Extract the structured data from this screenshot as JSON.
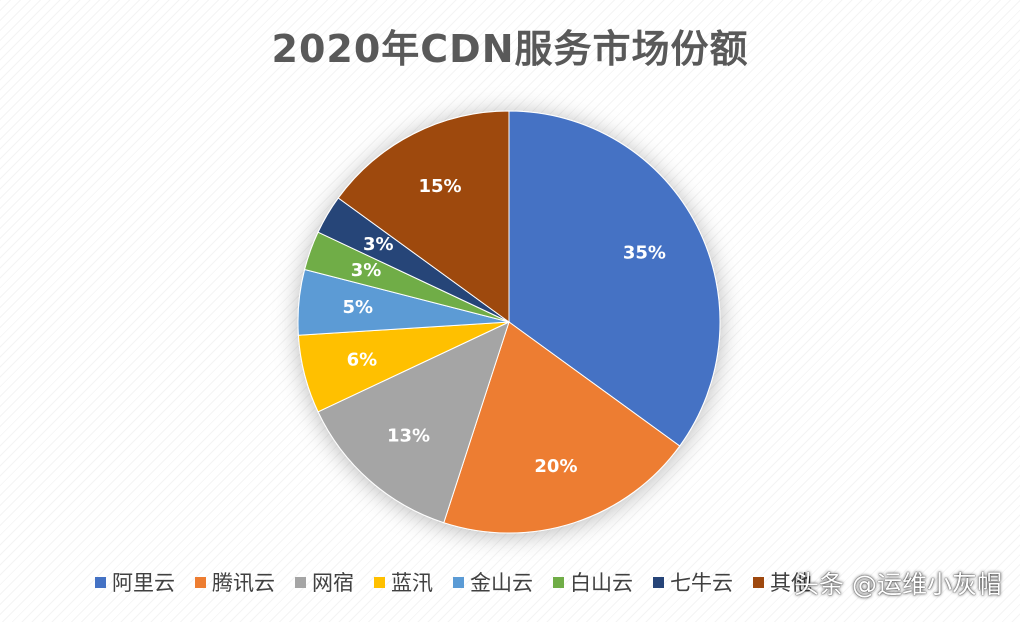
{
  "chart_data": {
    "type": "pie",
    "title": "2020年CDN服务市场份额",
    "categories": [
      "阿里云",
      "腾讯云",
      "网宿",
      "蓝汛",
      "金山云",
      "白山云",
      "七牛云",
      "其他"
    ],
    "values": [
      35,
      20,
      13,
      6,
      5,
      3,
      3,
      15
    ],
    "value_labels": [
      "35%",
      "20%",
      "13%",
      "6%",
      "5%",
      "3%",
      "3%",
      "15%"
    ],
    "colors": [
      "#4472C4",
      "#ED7D31",
      "#A5A5A5",
      "#FFC000",
      "#5B9BD5",
      "#70AD47",
      "#264478",
      "#9E480E"
    ],
    "legend_position": "bottom",
    "start_angle": "top (12 o'clock), clockwise"
  },
  "watermark": "头条 @运维小灰帽"
}
